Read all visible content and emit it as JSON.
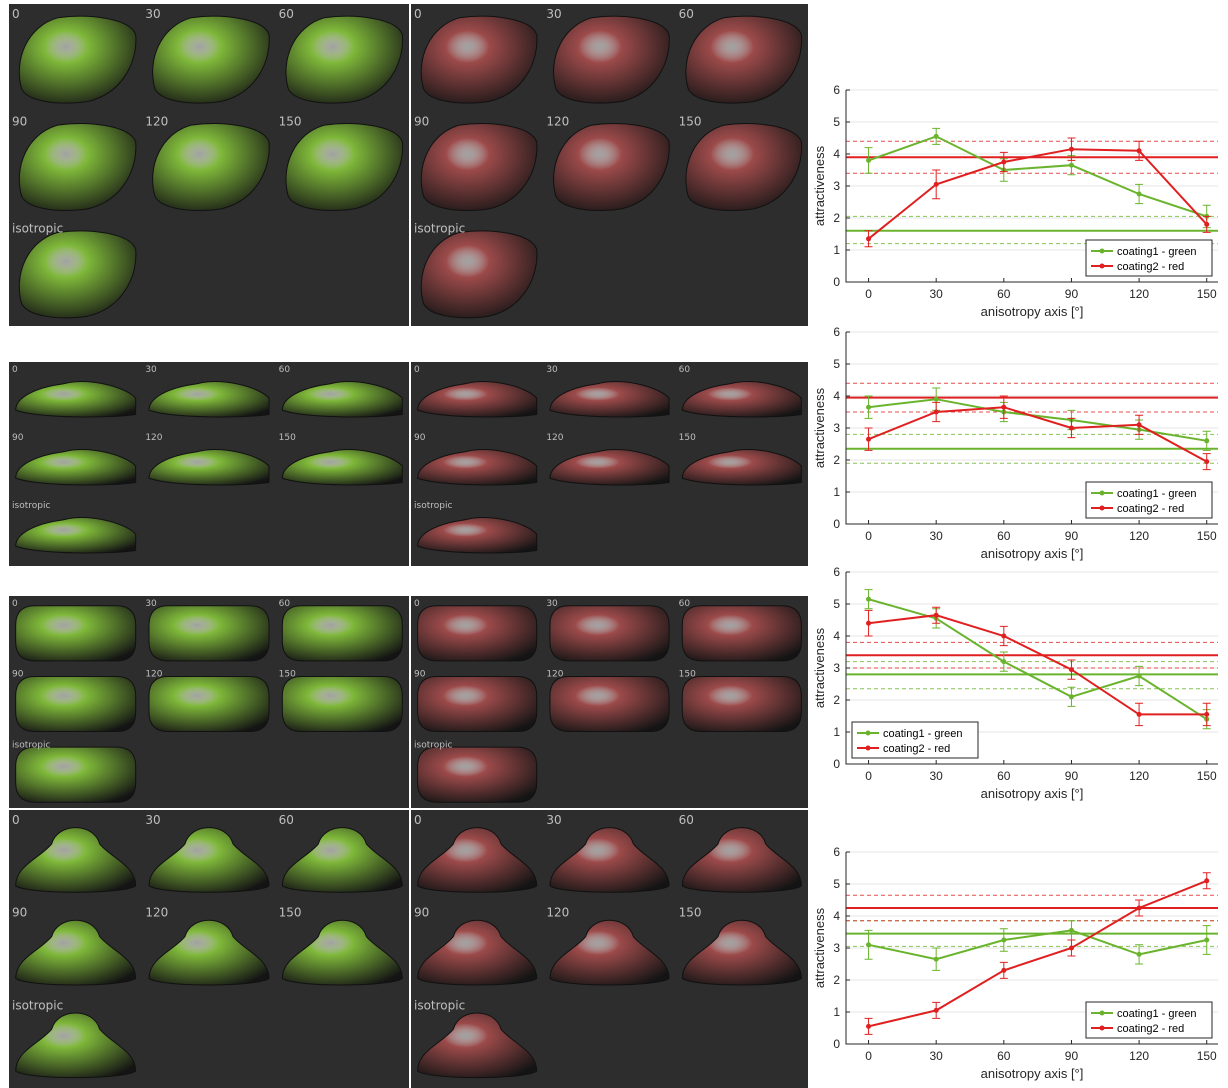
{
  "tile_labels": [
    "0",
    "30",
    "60",
    "90",
    "120",
    "150",
    "isotropic"
  ],
  "shapes": [
    {
      "name": "car-shape",
      "style": "car"
    },
    {
      "name": "flat-car-shape",
      "style": "flat"
    },
    {
      "name": "tub-shape",
      "style": "tub"
    },
    {
      "name": "dome-shape",
      "style": "dome"
    }
  ],
  "colors": {
    "green_line": "#6ab42d",
    "red_line": "#e02020",
    "green_paint": "#7fb83a",
    "red_paint": "#9c4a4a",
    "panel_bg": "#2d2d2d"
  },
  "chart_data": [
    {
      "type": "line",
      "xlabel": "anisotropy axis [°]",
      "ylabel": "attractiveness",
      "xlim": [
        -10,
        155
      ],
      "ylim": [
        0,
        6
      ],
      "x": [
        0,
        30,
        60,
        90,
        120,
        150
      ],
      "xticks": [
        "0",
        "30",
        "60",
        "90",
        "120",
        "150"
      ],
      "yticks": [
        "0",
        "1",
        "2",
        "3",
        "4",
        "5",
        "6"
      ],
      "legend_position": "bottom-right",
      "series": [
        {
          "name": "coating1 - green",
          "color": "#6ab42d",
          "values": [
            3.8,
            4.55,
            3.5,
            3.65,
            2.75,
            2.05
          ],
          "errors": [
            0.4,
            0.25,
            0.35,
            0.3,
            0.3,
            0.35
          ],
          "isotropic_mean": 1.6,
          "isotropic_ci": [
            1.2,
            2.05
          ]
        },
        {
          "name": "coating2 - red",
          "color": "#e02020",
          "values": [
            1.35,
            3.05,
            3.75,
            4.15,
            4.1,
            1.8
          ],
          "errors": [
            0.25,
            0.45,
            0.3,
            0.35,
            0.3,
            0.25
          ],
          "isotropic_mean": 3.9,
          "isotropic_ci": [
            3.4,
            4.4
          ]
        }
      ]
    },
    {
      "type": "line",
      "xlabel": "anisotropy axis [°]",
      "ylabel": "attractiveness",
      "xlim": [
        -10,
        155
      ],
      "ylim": [
        0,
        6
      ],
      "x": [
        0,
        30,
        60,
        90,
        120,
        150
      ],
      "xticks": [
        "0",
        "30",
        "60",
        "90",
        "120",
        "150"
      ],
      "yticks": [
        "0",
        "1",
        "2",
        "3",
        "4",
        "5",
        "6"
      ],
      "legend_position": "bottom-right",
      "series": [
        {
          "name": "coating1 - green",
          "color": "#6ab42d",
          "values": [
            3.65,
            3.9,
            3.5,
            3.25,
            2.95,
            2.6
          ],
          "errors": [
            0.35,
            0.35,
            0.3,
            0.3,
            0.3,
            0.3
          ],
          "isotropic_mean": 2.35,
          "isotropic_ci": [
            1.9,
            2.8
          ]
        },
        {
          "name": "coating2 - red",
          "color": "#e02020",
          "values": [
            2.65,
            3.5,
            3.65,
            3.0,
            3.1,
            1.95
          ],
          "errors": [
            0.35,
            0.3,
            0.35,
            0.3,
            0.3,
            0.25
          ],
          "isotropic_mean": 3.95,
          "isotropic_ci": [
            3.5,
            4.4
          ]
        }
      ]
    },
    {
      "type": "line",
      "xlabel": "anisotropy axis [°]",
      "ylabel": "attractiveness",
      "xlim": [
        -10,
        155
      ],
      "ylim": [
        0,
        6
      ],
      "x": [
        0,
        30,
        60,
        90,
        120,
        150
      ],
      "xticks": [
        "0",
        "30",
        "60",
        "90",
        "120",
        "150"
      ],
      "yticks": [
        "0",
        "1",
        "2",
        "3",
        "4",
        "5",
        "6"
      ],
      "legend_position": "bottom-left",
      "series": [
        {
          "name": "coating1 - green",
          "color": "#6ab42d",
          "values": [
            5.15,
            4.55,
            3.2,
            2.1,
            2.75,
            1.4
          ],
          "errors": [
            0.3,
            0.3,
            0.3,
            0.3,
            0.3,
            0.3
          ],
          "isotropic_mean": 2.8,
          "isotropic_ci": [
            2.35,
            3.2
          ]
        },
        {
          "name": "coating2 - red",
          "color": "#e02020",
          "values": [
            4.4,
            4.65,
            4.0,
            2.95,
            1.55,
            1.55
          ],
          "errors": [
            0.4,
            0.25,
            0.3,
            0.3,
            0.35,
            0.35
          ],
          "isotropic_mean": 3.4,
          "isotropic_ci": [
            3.0,
            3.8
          ]
        }
      ]
    },
    {
      "type": "line",
      "xlabel": "anisotropy axis [°]",
      "ylabel": "attractiveness",
      "xlim": [
        -10,
        155
      ],
      "ylim": [
        0,
        6
      ],
      "x": [
        0,
        30,
        60,
        90,
        120,
        150
      ],
      "xticks": [
        "0",
        "30",
        "60",
        "90",
        "120",
        "150"
      ],
      "yticks": [
        "0",
        "1",
        "2",
        "3",
        "4",
        "5",
        "6"
      ],
      "legend_position": "bottom-right",
      "series": [
        {
          "name": "coating1 - green",
          "color": "#6ab42d",
          "values": [
            3.1,
            2.65,
            3.25,
            3.55,
            2.8,
            3.25
          ],
          "errors": [
            0.45,
            0.35,
            0.35,
            0.3,
            0.3,
            0.45
          ],
          "isotropic_mean": 3.45,
          "isotropic_ci": [
            3.05,
            3.85
          ]
        },
        {
          "name": "coating2 - red",
          "color": "#e02020",
          "values": [
            0.55,
            1.05,
            2.3,
            3.0,
            4.25,
            5.1
          ],
          "errors": [
            0.25,
            0.25,
            0.25,
            0.25,
            0.25,
            0.25
          ],
          "isotropic_mean": 4.25,
          "isotropic_ci": [
            3.85,
            4.65
          ]
        }
      ]
    }
  ],
  "legend_labels": [
    "coating1 - green",
    "coating2 - red"
  ]
}
